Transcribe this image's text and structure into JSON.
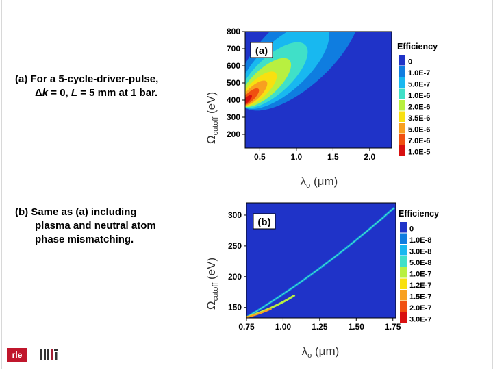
{
  "captions": {
    "a_line1": "(a) For a  5-cycle-driver-pulse,",
    "a_line2_delta": "Δ",
    "a_line2_k": "k",
    "a_line2_mid": " = 0, ",
    "a_line2_L": "L",
    "a_line2_rest": " = 5 mm at 1 bar.",
    "b_line1": "(b) Same as (a) including",
    "b_line2": "plasma and  neutral atom",
    "b_line3": "phase mismatching."
  },
  "logos": {
    "rle": "rle",
    "mit": "MIT"
  },
  "chart_data": [
    {
      "type": "heatmap",
      "panel_label": "(a)",
      "xlabel_symbol": "λ",
      "xlabel_sub": "o",
      "xlabel_unit": " (μm)",
      "ylabel_symbol": "Ω",
      "ylabel_sub": "cutoff",
      "ylabel_unit": " (eV)",
      "xlim": [
        0.3,
        2.3
      ],
      "ylim": [
        120,
        800
      ],
      "xticks": [
        "0.5",
        "1.0",
        "1.5",
        "2.0"
      ],
      "xtick_values": [
        0.5,
        1.0,
        1.5,
        2.0
      ],
      "yticks": [
        "200",
        "300",
        "400",
        "500",
        "600",
        "700",
        "800"
      ],
      "ytick_values": [
        200,
        300,
        400,
        500,
        600,
        700,
        800
      ],
      "legend_title": "Efficiency",
      "legend_labels": [
        "0",
        "1.0E-7",
        "5.0E-7",
        "1.0E-6",
        "2.0E-6",
        "3.5E-6",
        "5.0E-6",
        "7.0E-6",
        "1.0E-5"
      ],
      "legend_colors": [
        "#1f33c8",
        "#0f7de0",
        "#18b8f0",
        "#40e0c8",
        "#b8f040",
        "#f8e010",
        "#f8a020",
        "#f05010",
        "#d81010"
      ],
      "band_colors": [
        "#0f7de0",
        "#18b8f0",
        "#40e0c8",
        "#b8f040",
        "#f8e010",
        "#f8a020",
        "#f05010",
        "#d81010"
      ],
      "background": "#1f33c8"
    },
    {
      "type": "heatmap",
      "panel_label": "(b)",
      "xlabel_symbol": "λ",
      "xlabel_sub": "o",
      "xlabel_unit": " (μm)",
      "ylabel_symbol": "Ω",
      "ylabel_sub": "cutoff",
      "ylabel_unit": " (eV)",
      "xlim": [
        0.75,
        1.77
      ],
      "ylim": [
        133,
        320
      ],
      "xticks": [
        "0.75",
        "1.00",
        "1.25",
        "1.50",
        "1.75"
      ],
      "xtick_values": [
        0.75,
        1.0,
        1.25,
        1.5,
        1.75
      ],
      "yticks": [
        "150",
        "200",
        "250",
        "300"
      ],
      "ytick_values": [
        150,
        200,
        250,
        300
      ],
      "legend_title": "Efficiency",
      "legend_labels": [
        "0",
        "1.0E-8",
        "3.0E-8",
        "5.0E-8",
        "1.0E-7",
        "1.2E-7",
        "1.5E-7",
        "2.0E-7",
        "3.0E-7"
      ],
      "legend_colors": [
        "#1f33c8",
        "#0f7de0",
        "#18b8f0",
        "#40e0c8",
        "#b8f040",
        "#f8e010",
        "#f8a020",
        "#f05010",
        "#d81010"
      ],
      "background": "#1f33c8"
    }
  ]
}
